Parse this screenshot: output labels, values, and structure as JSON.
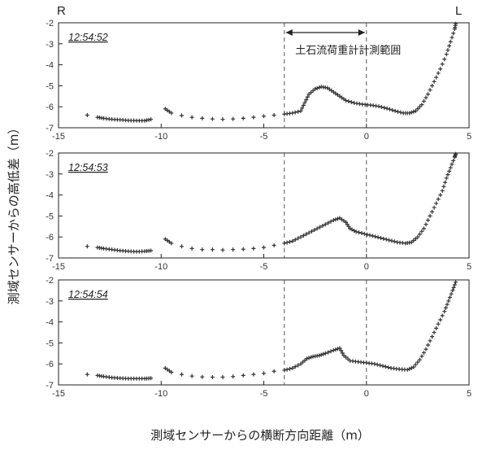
{
  "figure": {
    "left_label": "R",
    "right_label": "L",
    "xlabel": "測域センサーからの横断方向距離（m）",
    "ylabel": "測域センサーからの高低差（m）",
    "annotation": "土石流荷重計計測範囲"
  },
  "chart_data": [
    {
      "type": "scatter",
      "title": "12:54:52",
      "xlim": [
        -15,
        5
      ],
      "ylim": [
        -7,
        -2
      ],
      "xticks": [
        "-15",
        "-10",
        "-5",
        "0",
        "5"
      ],
      "yticks": [
        "-2",
        "-3",
        "-4",
        "-5",
        "-6",
        "-7"
      ],
      "grid": false,
      "reference_lines_x": [
        -4,
        0
      ],
      "series": [
        {
          "points": [
            [
              -13.6,
              -6.4
            ],
            [
              -13.1,
              -6.5
            ],
            [
              -12.8,
              -6.55
            ],
            [
              -12.4,
              -6.6
            ],
            [
              -12.0,
              -6.62
            ],
            [
              -11.6,
              -6.65
            ],
            [
              -11.2,
              -6.66
            ],
            [
              -10.8,
              -6.66
            ],
            [
              -10.5,
              -6.6
            ],
            [
              -9.8,
              -6.1
            ],
            [
              -9.5,
              -6.3
            ],
            [
              -9.0,
              -6.42
            ],
            [
              -8.5,
              -6.5
            ],
            [
              -8.0,
              -6.55
            ],
            [
              -7.5,
              -6.58
            ],
            [
              -7.0,
              -6.6
            ],
            [
              -6.5,
              -6.58
            ],
            [
              -6.0,
              -6.55
            ],
            [
              -5.5,
              -6.5
            ],
            [
              -5.0,
              -6.45
            ],
            [
              -4.5,
              -6.4
            ],
            [
              -4.0,
              -6.35
            ],
            [
              -3.6,
              -6.3
            ],
            [
              -3.2,
              -6.2
            ],
            [
              -3.0,
              -5.8
            ],
            [
              -2.8,
              -5.4
            ],
            [
              -2.5,
              -5.15
            ],
            [
              -2.2,
              -5.05
            ],
            [
              -1.9,
              -5.1
            ],
            [
              -1.6,
              -5.3
            ],
            [
              -1.3,
              -5.5
            ],
            [
              -1.0,
              -5.7
            ],
            [
              -0.6,
              -5.82
            ],
            [
              -0.2,
              -5.88
            ],
            [
              0.2,
              -5.92
            ],
            [
              0.6,
              -5.98
            ],
            [
              1.0,
              -6.08
            ],
            [
              1.4,
              -6.2
            ],
            [
              1.8,
              -6.3
            ],
            [
              2.1,
              -6.3
            ],
            [
              2.4,
              -6.2
            ],
            [
              2.7,
              -5.9
            ],
            [
              3.0,
              -5.4
            ],
            [
              3.3,
              -4.8
            ],
            [
              3.6,
              -4.2
            ],
            [
              3.9,
              -3.5
            ],
            [
              4.1,
              -2.9
            ],
            [
              4.3,
              -2.3
            ],
            [
              4.35,
              -2.05
            ]
          ]
        }
      ]
    },
    {
      "type": "scatter",
      "title": "12:54:53",
      "xlim": [
        -15,
        5
      ],
      "ylim": [
        -7,
        -2
      ],
      "xticks": [
        "-15",
        "-10",
        "-5",
        "0",
        "5"
      ],
      "yticks": [
        "-2",
        "-3",
        "-4",
        "-5",
        "-6",
        "-7"
      ],
      "grid": false,
      "reference_lines_x": [
        -4,
        0
      ],
      "series": [
        {
          "points": [
            [
              -13.6,
              -6.45
            ],
            [
              -13.1,
              -6.5
            ],
            [
              -12.8,
              -6.55
            ],
            [
              -12.4,
              -6.6
            ],
            [
              -12.0,
              -6.65
            ],
            [
              -11.6,
              -6.68
            ],
            [
              -11.2,
              -6.7
            ],
            [
              -10.8,
              -6.68
            ],
            [
              -10.5,
              -6.65
            ],
            [
              -9.8,
              -6.1
            ],
            [
              -9.5,
              -6.3
            ],
            [
              -9.0,
              -6.45
            ],
            [
              -8.5,
              -6.55
            ],
            [
              -8.0,
              -6.6
            ],
            [
              -7.5,
              -6.6
            ],
            [
              -7.0,
              -6.62
            ],
            [
              -6.5,
              -6.6
            ],
            [
              -6.0,
              -6.58
            ],
            [
              -5.5,
              -6.55
            ],
            [
              -5.0,
              -6.5
            ],
            [
              -4.5,
              -6.4
            ],
            [
              -4.0,
              -6.3
            ],
            [
              -3.6,
              -6.2
            ],
            [
              -3.2,
              -6.0
            ],
            [
              -2.8,
              -5.8
            ],
            [
              -2.4,
              -5.6
            ],
            [
              -2.0,
              -5.4
            ],
            [
              -1.6,
              -5.2
            ],
            [
              -1.3,
              -5.1
            ],
            [
              -1.0,
              -5.3
            ],
            [
              -0.8,
              -5.6
            ],
            [
              -0.5,
              -5.75
            ],
            [
              -0.1,
              -5.85
            ],
            [
              0.3,
              -5.95
            ],
            [
              0.7,
              -6.05
            ],
            [
              1.1,
              -6.15
            ],
            [
              1.5,
              -6.25
            ],
            [
              1.9,
              -6.3
            ],
            [
              2.2,
              -6.25
            ],
            [
              2.5,
              -6.0
            ],
            [
              2.8,
              -5.6
            ],
            [
              3.1,
              -5.0
            ],
            [
              3.4,
              -4.4
            ],
            [
              3.7,
              -3.8
            ],
            [
              3.9,
              -3.2
            ],
            [
              4.1,
              -2.7
            ],
            [
              4.3,
              -2.2
            ],
            [
              4.35,
              -2.05
            ]
          ]
        }
      ]
    },
    {
      "type": "scatter",
      "title": "12:54:54",
      "xlim": [
        -15,
        5
      ],
      "ylim": [
        -7,
        -2
      ],
      "xticks": [
        "-15",
        "-10",
        "-5",
        "0",
        "5"
      ],
      "yticks": [
        "-2",
        "-3",
        "-4",
        "-5",
        "-6",
        "-7"
      ],
      "grid": false,
      "reference_lines_x": [
        -4,
        0
      ],
      "series": [
        {
          "points": [
            [
              -13.6,
              -6.5
            ],
            [
              -13.1,
              -6.55
            ],
            [
              -12.8,
              -6.6
            ],
            [
              -12.4,
              -6.65
            ],
            [
              -12.0,
              -6.68
            ],
            [
              -11.6,
              -6.7
            ],
            [
              -11.2,
              -6.7
            ],
            [
              -10.8,
              -6.7
            ],
            [
              -10.5,
              -6.68
            ],
            [
              -9.8,
              -6.2
            ],
            [
              -9.5,
              -6.4
            ],
            [
              -9.0,
              -6.5
            ],
            [
              -8.5,
              -6.58
            ],
            [
              -8.0,
              -6.62
            ],
            [
              -7.5,
              -6.63
            ],
            [
              -7.0,
              -6.63
            ],
            [
              -6.5,
              -6.6
            ],
            [
              -6.0,
              -6.55
            ],
            [
              -5.5,
              -6.5
            ],
            [
              -5.0,
              -6.45
            ],
            [
              -4.5,
              -6.35
            ],
            [
              -4.0,
              -6.3
            ],
            [
              -3.6,
              -6.2
            ],
            [
              -3.2,
              -6.0
            ],
            [
              -2.9,
              -5.75
            ],
            [
              -2.6,
              -5.65
            ],
            [
              -2.3,
              -5.6
            ],
            [
              -2.0,
              -5.5
            ],
            [
              -1.6,
              -5.35
            ],
            [
              -1.3,
              -5.25
            ],
            [
              -1.1,
              -5.6
            ],
            [
              -0.8,
              -5.85
            ],
            [
              -0.4,
              -5.9
            ],
            [
              0.0,
              -5.95
            ],
            [
              0.4,
              -6.0
            ],
            [
              0.8,
              -6.1
            ],
            [
              1.2,
              -6.2
            ],
            [
              1.6,
              -6.25
            ],
            [
              2.0,
              -6.28
            ],
            [
              2.3,
              -6.15
            ],
            [
              2.6,
              -5.8
            ],
            [
              2.9,
              -5.3
            ],
            [
              3.2,
              -4.7
            ],
            [
              3.5,
              -4.1
            ],
            [
              3.8,
              -3.5
            ],
            [
              4.0,
              -3.0
            ],
            [
              4.2,
              -2.5
            ],
            [
              4.35,
              -2.1
            ]
          ]
        }
      ]
    }
  ]
}
